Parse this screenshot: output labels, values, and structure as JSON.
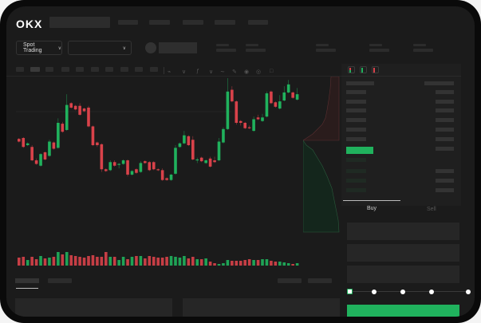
{
  "header": {
    "logo": "OKX",
    "nav_items": 5
  },
  "market_selector": {
    "label": "Spot Trading",
    "chevron": "chevron-down-icon",
    "pair_chevron": "chevron-down-icon"
  },
  "orderbook": {
    "view_icons": [
      "orderbook-both-icon",
      "orderbook-bids-icon",
      "orderbook-asks-icon"
    ]
  },
  "trade_form": {
    "tabs": [
      "Buy",
      "Sell"
    ],
    "active_tab": "Buy",
    "slider_level_percent": 0,
    "slider_stops": [
      0,
      25,
      50,
      75,
      100
    ]
  },
  "colors": {
    "up": "#20b25d",
    "down": "#d9424a",
    "background": "#1b1b1b",
    "accent": "#20b25d"
  },
  "chart_data": {
    "type": "candlestick",
    "candles": [
      [
        57,
        54,
        58,
        53
      ],
      [
        58,
        48,
        59,
        47
      ],
      [
        50,
        52,
        53,
        49
      ],
      [
        48,
        33,
        50,
        32
      ],
      [
        33,
        29,
        35,
        28
      ],
      [
        27,
        40,
        41,
        26
      ],
      [
        42,
        34,
        43,
        33
      ],
      [
        38,
        54,
        56,
        37
      ],
      [
        53,
        46,
        54,
        45
      ],
      [
        47,
        75,
        80,
        46
      ],
      [
        74,
        65,
        76,
        64
      ],
      [
        67,
        95,
        107,
        66
      ],
      [
        97,
        92,
        98,
        91
      ],
      [
        94,
        90,
        95,
        89
      ],
      [
        94,
        84,
        97,
        83
      ],
      [
        91,
        88,
        92,
        87
      ],
      [
        92,
        71,
        94,
        70
      ],
      [
        71,
        50,
        72,
        49
      ],
      [
        53,
        50,
        54,
        48
      ],
      [
        51,
        23,
        52,
        20
      ],
      [
        23,
        21,
        24,
        20
      ],
      [
        22,
        31,
        33,
        21
      ],
      [
        31,
        27,
        33,
        26
      ],
      [
        28,
        29,
        30,
        24
      ],
      [
        29,
        33,
        34,
        28
      ],
      [
        33,
        17,
        34,
        15
      ],
      [
        17,
        21,
        22,
        16
      ],
      [
        23,
        19,
        24,
        18
      ],
      [
        20,
        30,
        32,
        19
      ],
      [
        32,
        30,
        33,
        29
      ],
      [
        31,
        22,
        32,
        21
      ],
      [
        31,
        23,
        32,
        22
      ],
      [
        23,
        22,
        24,
        21
      ],
      [
        22,
        11,
        24,
        10
      ],
      [
        13,
        11,
        14,
        10
      ],
      [
        11,
        17,
        18,
        10
      ],
      [
        18,
        47,
        50,
        17
      ],
      [
        48,
        52,
        53,
        47
      ],
      [
        52,
        61,
        66,
        51
      ],
      [
        60,
        50,
        61,
        49
      ],
      [
        56,
        34,
        60,
        33
      ],
      [
        33,
        34,
        36,
        30
      ],
      [
        36,
        32,
        37,
        31
      ],
      [
        30,
        33,
        34,
        29
      ],
      [
        35,
        26,
        37,
        25
      ],
      [
        33,
        31,
        37,
        30
      ],
      [
        33,
        54,
        58,
        32
      ],
      [
        53,
        68,
        70,
        52
      ],
      [
        68,
        110,
        125,
        67
      ],
      [
        112,
        99,
        116,
        98
      ],
      [
        99,
        75,
        100,
        73
      ],
      [
        77,
        75,
        78,
        72
      ],
      [
        75,
        69,
        76,
        68
      ],
      [
        70,
        69,
        72,
        68
      ],
      [
        66,
        79,
        82,
        65
      ],
      [
        81,
        79,
        84,
        78
      ],
      [
        77,
        81,
        85,
        76
      ],
      [
        82,
        108,
        110,
        81
      ],
      [
        110,
        97,
        111,
        96
      ],
      [
        98,
        93,
        99,
        92
      ],
      [
        91,
        99,
        106,
        90
      ],
      [
        100,
        109,
        116,
        99
      ],
      [
        109,
        118,
        123,
        108
      ],
      [
        109,
        103,
        110,
        102
      ],
      [
        101,
        107,
        114,
        100
      ]
    ],
    "volume": [
      10,
      11,
      7,
      11,
      8,
      12,
      9,
      10,
      11,
      17,
      14,
      17,
      13,
      12,
      11,
      10,
      12,
      13,
      11,
      11,
      17,
      11,
      11,
      7,
      11,
      8,
      11,
      12,
      12,
      9,
      12,
      11,
      10,
      10,
      11,
      12,
      11,
      10,
      12,
      9,
      11,
      8,
      8,
      9,
      5,
      3,
      2,
      3,
      7,
      6,
      6,
      6,
      7,
      8,
      7,
      7,
      8,
      8,
      6,
      5,
      5,
      4,
      3,
      2,
      3
    ]
  }
}
